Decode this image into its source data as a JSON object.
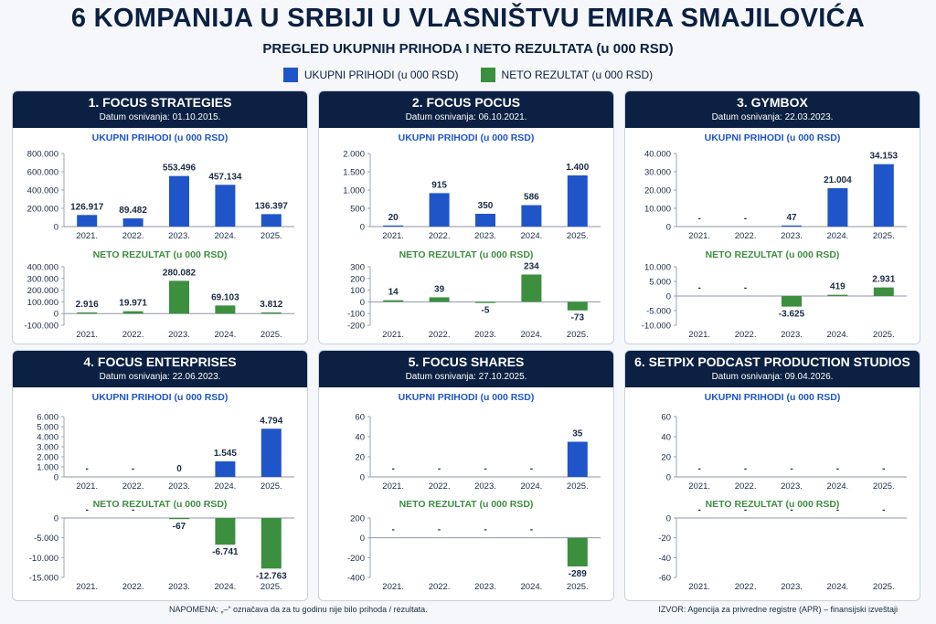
{
  "header": {
    "title": "6 KOMPANIJA U SRBIJI U VLASNIŠTVU EMIRA SMAJILOVIĆA",
    "subtitle": "PREGLED UKUPNIH PRIHODA I NETO REZULTATA (u 000 RSD)"
  },
  "legend": {
    "revenue_label": "UKUPNI PRIHODI (u 000 RSD)",
    "net_label": "NETO REZULTAT (u 000 RSD)",
    "revenue_color": "#1f55c8",
    "net_color": "#3c8f3f"
  },
  "footer": {
    "note": "NAPOMENA:  „–“ označava da za tu godinu nije bilo prihoda / rezultata.",
    "source": "IZVOR: Agencija za privredne registre (APR) – finansijski izveštaji"
  },
  "chart_data": [
    {
      "type": "bar",
      "company": "1. FOCUS STRATEGIES",
      "founded": "Datum osnivanja: 01.10.2015.",
      "categories": [
        "2021.",
        "2022.",
        "2023.",
        "2024.",
        "2025."
      ],
      "revenue": {
        "title": "UKUPNI PRIHODI (u 000 RSD)",
        "values": [
          126917,
          89482,
          553496,
          457134,
          136397
        ],
        "labels": [
          "126.917",
          "89.482",
          "553.496",
          "457.134",
          "136.397"
        ],
        "ylim": [
          0,
          800000
        ],
        "ticks": [
          0,
          200000,
          400000,
          600000,
          800000
        ],
        "tick_labels": [
          "0",
          "200.000",
          "400.000",
          "600.000",
          "800.000"
        ]
      },
      "net": {
        "title": "NETO REZULTAT (u 000 RSD)",
        "values": [
          2916,
          19971,
          280082,
          69103,
          3812
        ],
        "labels": [
          "2.916",
          "19.971",
          "280.082",
          "69.103",
          "3.812"
        ],
        "ylim": [
          -100000,
          400000
        ],
        "ticks": [
          -100000,
          0,
          100000,
          200000,
          300000,
          400000
        ],
        "tick_labels": [
          "-100.000",
          "0",
          "100.000",
          "200.000",
          "300.000",
          "400.000"
        ]
      }
    },
    {
      "type": "bar",
      "company": "2. FOCUS POCUS",
      "founded": "Datum osnivanja: 06.10.2021.",
      "categories": [
        "2021.",
        "2022.",
        "2023.",
        "2024.",
        "2025."
      ],
      "revenue": {
        "title": "UKUPNI PRIHODI (u 000 RSD)",
        "values": [
          20,
          915,
          350,
          586,
          1400
        ],
        "labels": [
          "20",
          "915",
          "350",
          "586",
          "1.400"
        ],
        "ylim": [
          0,
          2000
        ],
        "ticks": [
          0,
          500,
          1000,
          1500,
          2000
        ],
        "tick_labels": [
          "0",
          "500",
          "1.000",
          "1.500",
          "2.000"
        ]
      },
      "net": {
        "title": "NETO REZULTAT (u 000 RSD)",
        "values": [
          14,
          39,
          -5,
          234,
          -73
        ],
        "labels": [
          "14",
          "39",
          "-5",
          "234",
          "-73"
        ],
        "ylim": [
          -200,
          300
        ],
        "ticks": [
          -200,
          -100,
          0,
          100,
          200,
          300
        ],
        "tick_labels": [
          "-200",
          "-100",
          "0",
          "100",
          "200",
          "300"
        ]
      }
    },
    {
      "type": "bar",
      "company": "3. GYMBOX",
      "founded": "Datum osnivanja: 22.03.2023.",
      "categories": [
        "2021.",
        "2022.",
        "2023.",
        "2024.",
        "2025."
      ],
      "revenue": {
        "title": "UKUPNI PRIHODI (u 000 RSD)",
        "values": [
          null,
          null,
          47,
          21004,
          34153
        ],
        "labels": [
          "-",
          "-",
          "47",
          "21.004",
          "34.153"
        ],
        "ylim": [
          0,
          40000
        ],
        "ticks": [
          0,
          10000,
          20000,
          30000,
          40000
        ],
        "tick_labels": [
          "0",
          "10.000",
          "20.000",
          "30.000",
          "40.000"
        ]
      },
      "net": {
        "title": "NETO REZULTAT (u 000 RSD)",
        "values": [
          null,
          null,
          -3625,
          419,
          2931
        ],
        "labels": [
          "-",
          "-",
          "-3.625",
          "419",
          "2.931"
        ],
        "ylim": [
          -10000,
          10000
        ],
        "ticks": [
          -10000,
          -5000,
          0,
          5000,
          10000
        ],
        "tick_labels": [
          "-10.000",
          "-5.000",
          "0",
          "5.000",
          "10.000"
        ]
      }
    },
    {
      "type": "bar",
      "company": "4. FOCUS ENTERPRISES",
      "founded": "Datum osnivanja: 22.06.2023.",
      "categories": [
        "2021.",
        "2022.",
        "2023.",
        "2024.",
        "2025."
      ],
      "revenue": {
        "title": "UKUPNI PRIHODI (u 000 RSD)",
        "values": [
          null,
          null,
          0,
          1545,
          4794
        ],
        "labels": [
          "-",
          "-",
          "0",
          "1.545",
          "4.794"
        ],
        "ylim": [
          0,
          6000
        ],
        "ticks": [
          0,
          1000,
          2000,
          3000,
          4000,
          5000,
          6000
        ],
        "tick_labels": [
          "0",
          "1.000",
          "2.000",
          "3.000",
          "4.000",
          "5.000",
          "6.000"
        ]
      },
      "net": {
        "title": "NETO REZULTAT (u 000 RSD)",
        "values": [
          null,
          null,
          -67,
          -6741,
          -12763
        ],
        "labels": [
          "-",
          "-",
          "-67",
          "-6.741",
          "-12.763"
        ],
        "ylim": [
          -15000,
          0
        ],
        "ticks": [
          -15000,
          -10000,
          -5000,
          0
        ],
        "tick_labels": [
          "-15.000",
          "-10.000",
          "-5.000",
          "0"
        ]
      }
    },
    {
      "type": "bar",
      "company": "5. FOCUS SHARES",
      "founded": "Datum osnivanja: 27.10.2025.",
      "categories": [
        "2021.",
        "2022.",
        "2023.",
        "2024.",
        "2025."
      ],
      "revenue": {
        "title": "UKUPNI PRIHODI (u 000 RSD)",
        "values": [
          null,
          null,
          null,
          null,
          35
        ],
        "labels": [
          "-",
          "-",
          "-",
          "-",
          "35"
        ],
        "ylim": [
          0,
          60
        ],
        "ticks": [
          0,
          20,
          40,
          60
        ],
        "tick_labels": [
          "0",
          "20",
          "40",
          "60"
        ]
      },
      "net": {
        "title": "NETO REZULTAT (u 000 RSD)",
        "values": [
          null,
          null,
          null,
          null,
          -289
        ],
        "labels": [
          "-",
          "-",
          "-",
          "-",
          "-289"
        ],
        "ylim": [
          -400,
          200
        ],
        "ticks": [
          -400,
          -200,
          0,
          200
        ],
        "tick_labels": [
          "-400",
          "-200",
          "0",
          "200"
        ]
      }
    },
    {
      "type": "bar",
      "company": "6. SETPIX PODCAST PRODUCTION STUDIOS",
      "founded": "Datum osnivanja: 09.04.2026.",
      "categories": [
        "2021.",
        "2022.",
        "2023.",
        "2024.",
        "2025."
      ],
      "revenue": {
        "title": "UKUPNI PRIHODI (u 000 RSD)",
        "values": [
          null,
          null,
          null,
          null,
          null
        ],
        "labels": [
          "-",
          "-",
          "-",
          "-",
          "-"
        ],
        "ylim": [
          0,
          60
        ],
        "ticks": [
          0,
          20,
          40,
          60
        ],
        "tick_labels": [
          "0",
          "20",
          "40",
          "60"
        ]
      },
      "net": {
        "title": "NETO REZULTAT (u 000 RSD)",
        "values": [
          null,
          null,
          null,
          null,
          null
        ],
        "labels": [
          "-",
          "-",
          "-",
          "-",
          "-"
        ],
        "ylim": [
          -60,
          0
        ],
        "ticks": [
          -60,
          -40,
          -20,
          0
        ],
        "tick_labels": [
          "-60",
          "-40",
          "-20",
          "0"
        ]
      }
    }
  ]
}
